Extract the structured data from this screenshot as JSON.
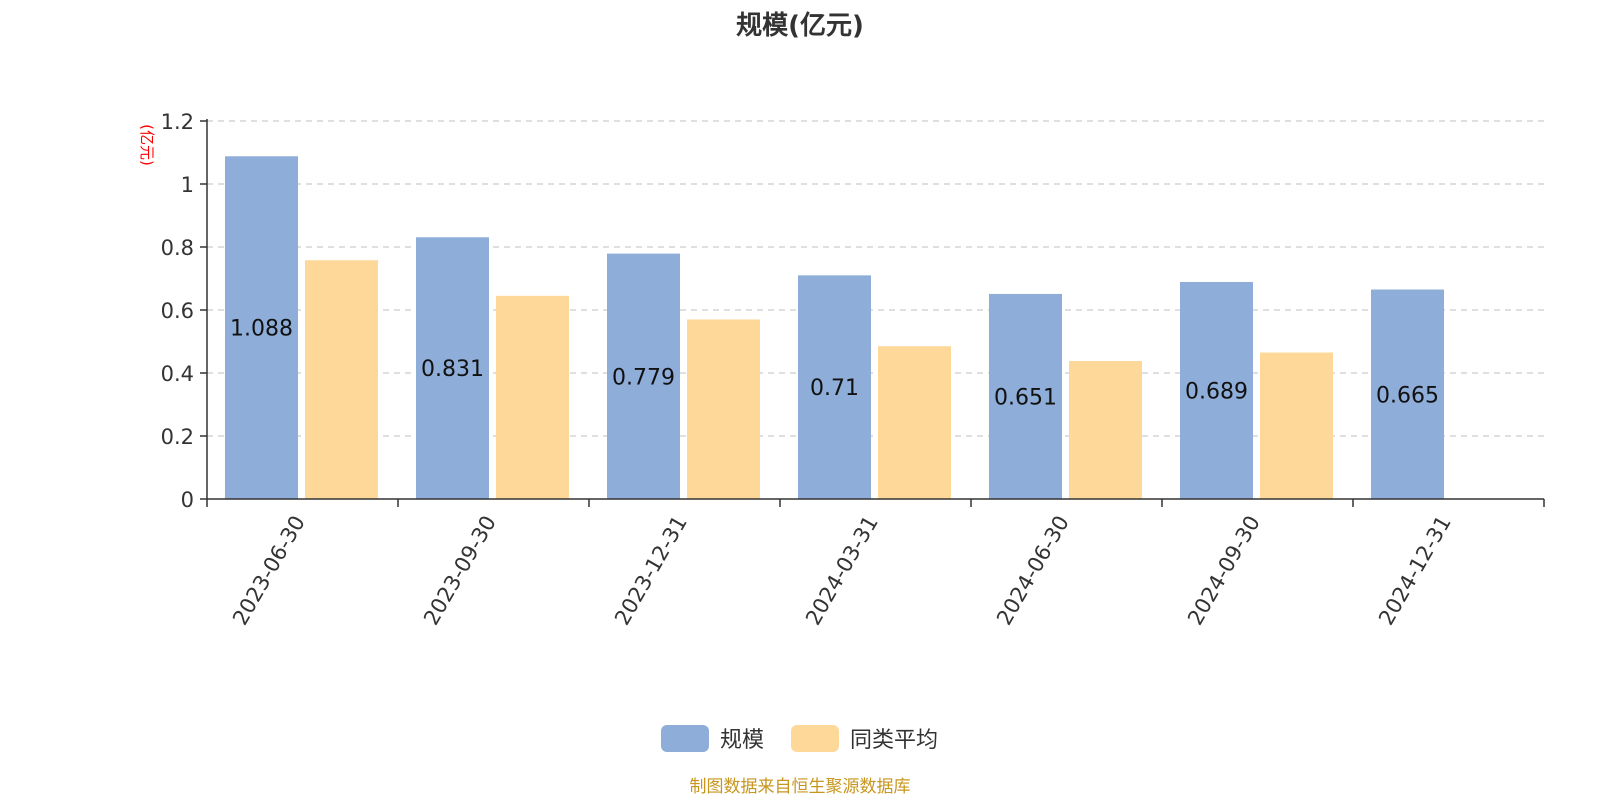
{
  "chart_data": {
    "type": "bar",
    "title": "规模(亿元)",
    "ylabel": "(亿元)",
    "categories": [
      "2023-06-30",
      "2023-09-30",
      "2023-12-31",
      "2024-03-31",
      "2024-06-30",
      "2024-09-30",
      "2024-12-31"
    ],
    "series": [
      {
        "name": "规模",
        "color": "#8eadd9",
        "values": [
          1.088,
          0.831,
          0.779,
          0.71,
          0.651,
          0.689,
          0.665
        ],
        "labels": [
          "1.088",
          "0.831",
          "0.779",
          "0.71",
          "0.651",
          "0.689",
          "0.665"
        ]
      },
      {
        "name": "同类平均",
        "color": "#fdd899",
        "values": [
          0.758,
          0.645,
          0.57,
          0.485,
          0.438,
          0.465,
          null
        ]
      }
    ],
    "ylim": [
      0,
      1.2
    ],
    "yticks": [
      "0",
      "0.2",
      "0.4",
      "0.6",
      "0.8",
      "1",
      "1.2"
    ],
    "grid": true,
    "legend_position": "bottom-center"
  },
  "source_note": "制图数据来自恒生聚源数据库",
  "colors": {
    "unit_label": "#ff0000",
    "source_note": "#c8961e",
    "axis": "#333333",
    "grid": "#cccccc"
  }
}
